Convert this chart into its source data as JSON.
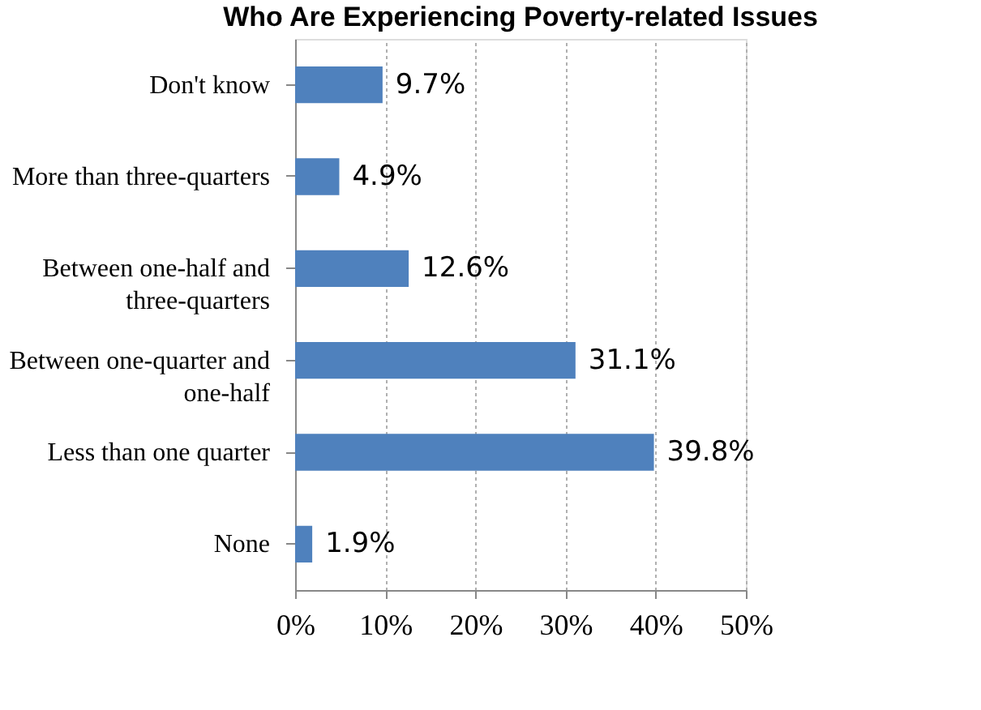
{
  "chart_data": {
    "type": "bar",
    "orientation": "horizontal",
    "title": "Who Are Experiencing Poverty-related Issues",
    "categories": [
      "Don't know",
      "More than three-quarters",
      "Between one-half and three-quarters",
      "Between one-quarter and one-half",
      "Less than one quarter",
      "None"
    ],
    "values": [
      9.7,
      4.9,
      12.6,
      31.1,
      39.8,
      1.9
    ],
    "value_labels": [
      "9.7%",
      "4.9%",
      "12.6%",
      "31.1%",
      "39.8%",
      "1.9%"
    ],
    "color": "#4f81bd",
    "xlim": [
      0,
      50
    ],
    "xticks": [
      {
        "value": 0,
        "label": "0%"
      },
      {
        "value": 10,
        "label": "10%"
      },
      {
        "value": 20,
        "label": "20%"
      },
      {
        "value": 30,
        "label": "30%"
      },
      {
        "value": 40,
        "label": "40%"
      },
      {
        "value": 50,
        "label": "50%"
      }
    ],
    "grid": "x"
  }
}
